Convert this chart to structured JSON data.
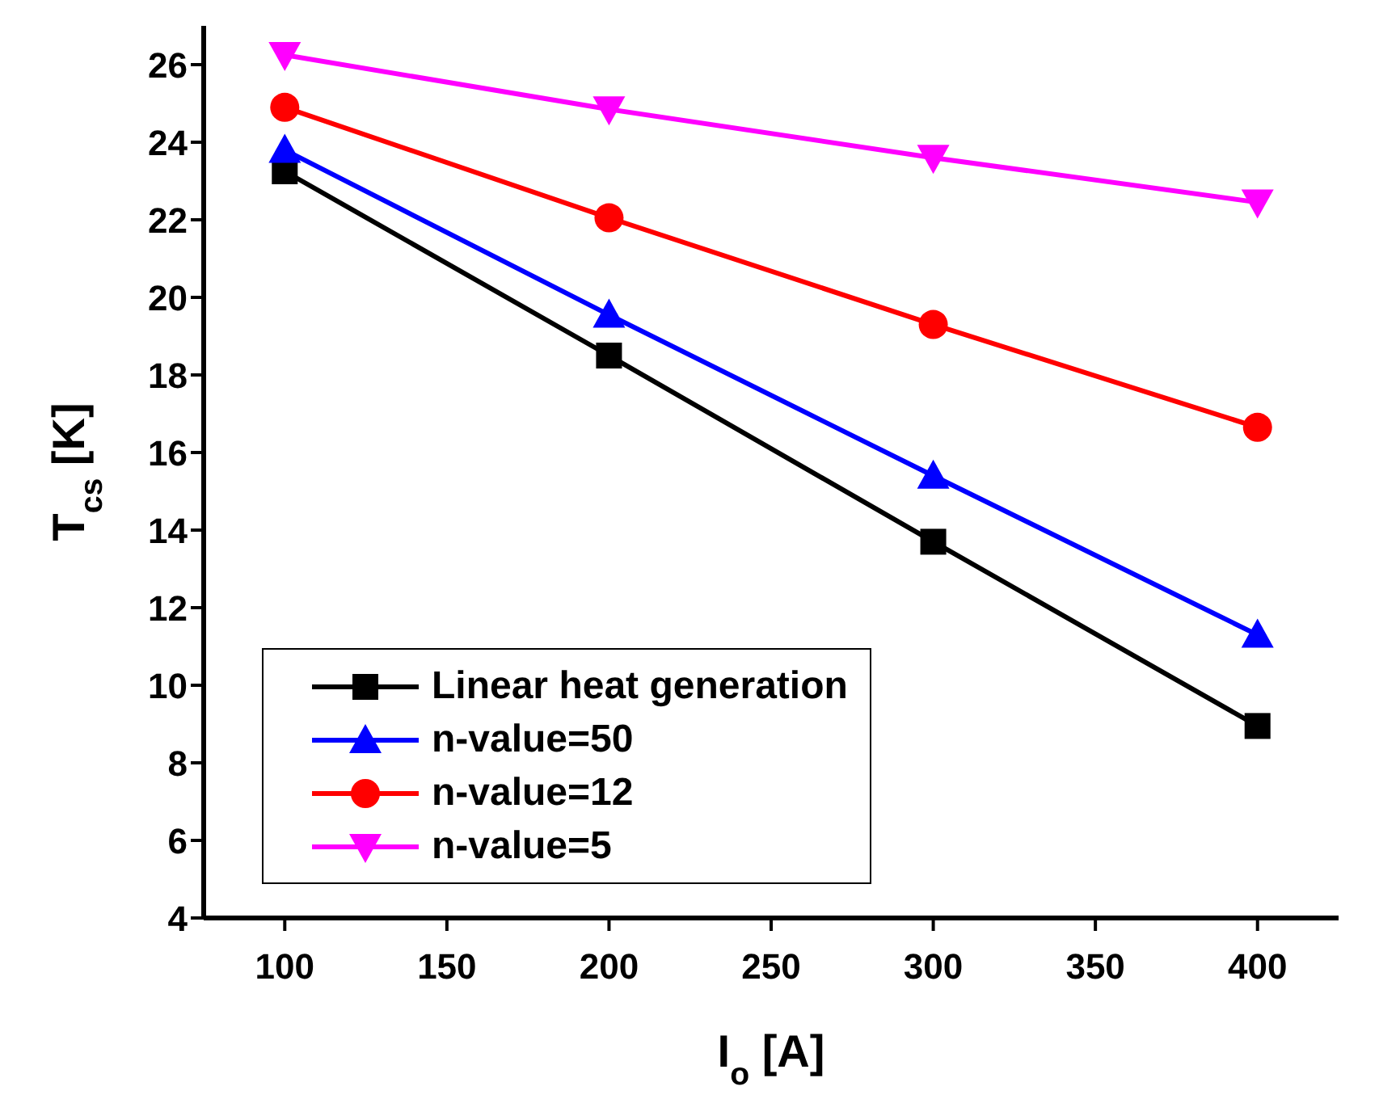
{
  "chart_data": {
    "type": "line",
    "xlabel": "I$_{o}$ [A]",
    "ylabel": "T$_{cs}$ [K]",
    "x": [
      100,
      200,
      300,
      400
    ],
    "series": [
      {
        "name": "Linear heat generation",
        "color": "#000000",
        "marker": "square",
        "values": [
          23.25,
          18.5,
          13.7,
          8.95
        ]
      },
      {
        "name": "n-value=50",
        "color": "#0000ff",
        "marker": "triangle",
        "values": [
          23.8,
          19.55,
          15.4,
          11.3
        ]
      },
      {
        "name": "n-value=12",
        "color": "#ff0000",
        "marker": "circle",
        "values": [
          24.9,
          22.05,
          19.3,
          16.65
        ]
      },
      {
        "name": "n-value=5",
        "color": "#ff00ff",
        "marker": "triangle-down",
        "values": [
          26.25,
          24.85,
          23.6,
          22.45
        ]
      }
    ],
    "xlim": [
      75,
      425
    ],
    "xticks": [
      100,
      150,
      200,
      250,
      300,
      350,
      400
    ],
    "ylim": [
      4,
      27
    ],
    "yticks": [
      4,
      6,
      8,
      10,
      12,
      14,
      16,
      18,
      20,
      22,
      24,
      26
    ],
    "legend": "bottom left",
    "line_style": "solid"
  }
}
